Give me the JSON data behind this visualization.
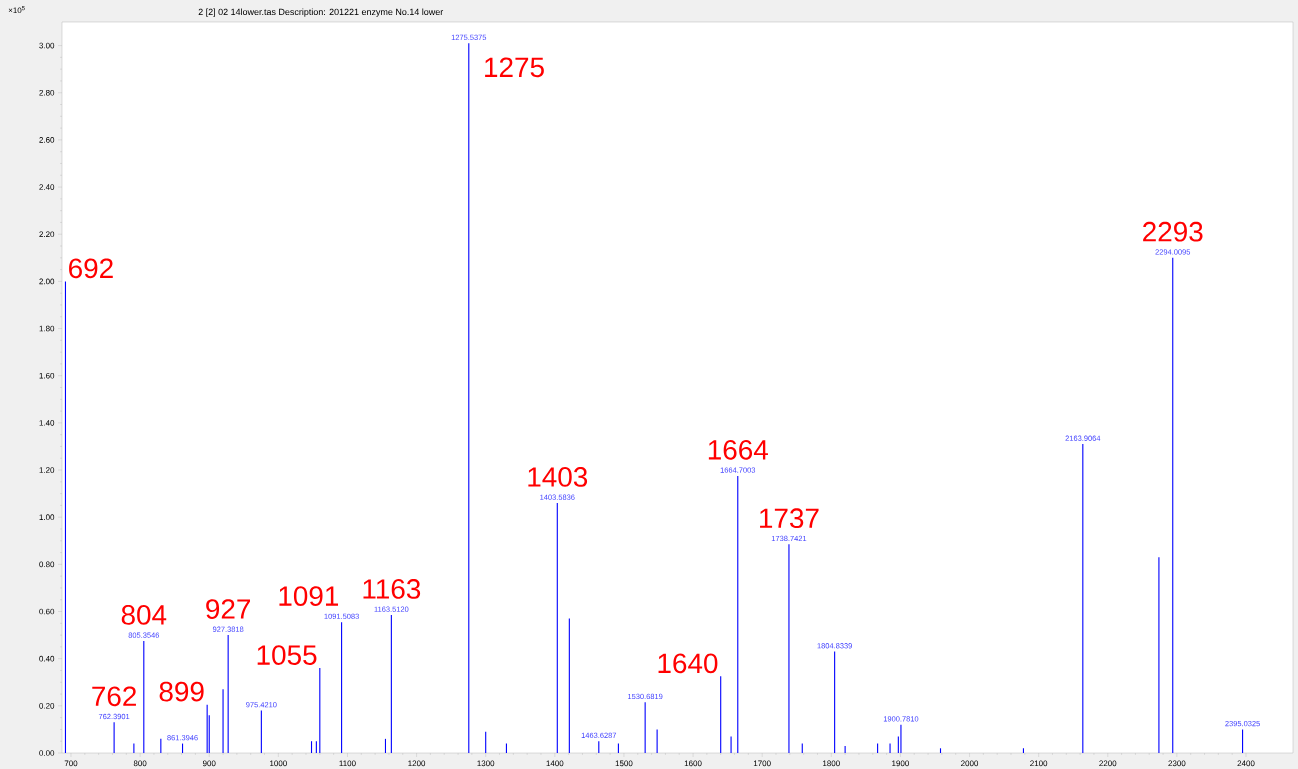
{
  "chart_data": {
    "type": "bar",
    "title": "2 [2] 02 14lower.tas    Description: 201221 enzyme No.14 lower",
    "ylabel": "×10$^{5}$",
    "color": "#0000ff",
    "x": [
      692,
      762.3901,
      791,
      805.3546,
      830,
      861.3946,
      897,
      900,
      920,
      927.3818,
      975.421,
      1048,
      1055,
      1060,
      1091.5083,
      1155,
      1163.512,
      1275.5375,
      1300,
      1330,
      1403.5836,
      1421,
      1463.6287,
      1492,
      1530.6819,
      1548,
      1640,
      1655,
      1664.7003,
      1738.7421,
      1758,
      1804.8339,
      1820,
      1867,
      1885,
      1897,
      1900.781,
      1958,
      2078,
      2163.9064,
      2274,
      2294.0095,
      2395.0325
    ],
    "values": [
      2.0,
      0.13,
      0.04,
      0.475,
      0.06,
      0.04,
      0.205,
      0.16,
      0.27,
      0.5,
      0.18,
      0.05,
      0.05,
      0.36,
      0.555,
      0.06,
      0.585,
      3.01,
      0.09,
      0.04,
      1.06,
      0.57,
      0.05,
      0.04,
      0.215,
      0.1,
      0.325,
      0.07,
      1.175,
      0.885,
      0.04,
      0.43,
      0.03,
      0.04,
      0.04,
      0.07,
      0.12,
      0.02,
      0.02,
      1.31,
      0.83,
      2.1,
      0.1
    ],
    "xlim": [
      687,
      2468
    ],
    "ylim": [
      0,
      3.1
    ],
    "xticks": [
      700,
      800,
      900,
      1000,
      1100,
      1200,
      1300,
      1400,
      1500,
      1600,
      1700,
      1800,
      1900,
      2000,
      2100,
      2200,
      2300,
      2400
    ],
    "yticks": [
      {
        "value": 0,
        "label": "0.00"
      },
      {
        "value": 0.2,
        "label": "0.20"
      },
      {
        "value": 0.4,
        "label": "0.40"
      },
      {
        "value": 0.6,
        "label": "0.60"
      },
      {
        "value": 0.8,
        "label": "0.80"
      },
      {
        "value": 1.0,
        "label": "1.00"
      },
      {
        "value": 1.2,
        "label": "1.20"
      },
      {
        "value": 1.4,
        "label": "1.40"
      },
      {
        "value": 1.6,
        "label": "1.60"
      },
      {
        "value": 1.8,
        "label": "1.80"
      },
      {
        "value": 2.0,
        "label": "2.00"
      },
      {
        "value": 2.2,
        "label": "2.20"
      },
      {
        "value": 2.4,
        "label": "2.40"
      },
      {
        "value": 2.6,
        "label": "2.60"
      },
      {
        "value": 2.8,
        "label": "2.80"
      },
      {
        "value": 3.0,
        "label": "3.00"
      }
    ],
    "annotations": [
      {
        "text": "762.3901",
        "x": 762.3901,
        "y": 0.13
      },
      {
        "text": "805.3546",
        "x": 805.3546,
        "y": 0.475
      },
      {
        "text": "861.3946",
        "x": 861.3946,
        "y": 0.04
      },
      {
        "text": "927.3818",
        "x": 927.3818,
        "y": 0.5
      },
      {
        "text": "975.4210",
        "x": 975.421,
        "y": 0.18
      },
      {
        "text": "1091.5083",
        "x": 1091.5083,
        "y": 0.555
      },
      {
        "text": "1163.5120",
        "x": 1163.512,
        "y": 0.585
      },
      {
        "text": "1275.5375",
        "x": 1275.5375,
        "y": 3.01
      },
      {
        "text": "1403.5836",
        "x": 1403.5836,
        "y": 1.06
      },
      {
        "text": "1463.6287",
        "x": 1463.6287,
        "y": 0.05
      },
      {
        "text": "1530.6819",
        "x": 1530.6819,
        "y": 0.215
      },
      {
        "text": "1664.7003",
        "x": 1664.7003,
        "y": 1.175
      },
      {
        "text": "1738.7421",
        "x": 1738.7421,
        "y": 0.885
      },
      {
        "text": "1804.8339",
        "x": 1804.8339,
        "y": 0.43
      },
      {
        "text": "1900.7810",
        "x": 1900.781,
        "y": 0.12
      },
      {
        "text": "2163.9064",
        "x": 2163.9064,
        "y": 1.31
      },
      {
        "text": "2294.0095",
        "x": 2294.0095,
        "y": 2.1
      },
      {
        "text": "2395.0325",
        "x": 2395.0325,
        "y": 0.1
      },
      {
        "text": "692",
        "x": 692,
        "y": 2.0
      },
      {
        "text": "762",
        "x": 762.3901,
        "y": 0.13
      },
      {
        "text": "804",
        "x": 805.3546,
        "y": 0.475
      },
      {
        "text": "899",
        "x": 897,
        "y": 0.205
      },
      {
        "text": "927",
        "x": 927.3818,
        "y": 0.5
      },
      {
        "text": "1055",
        "x": 1060,
        "y": 0.36
      },
      {
        "text": "1091",
        "x": 1091.5083,
        "y": 0.555
      },
      {
        "text": "1163",
        "x": 1163.512,
        "y": 0.585
      },
      {
        "text": "1275",
        "x": 1275.5375,
        "y": 3.01
      },
      {
        "text": "1403",
        "x": 1403.5836,
        "y": 1.06
      },
      {
        "text": "1640",
        "x": 1640,
        "y": 0.325
      },
      {
        "text": "1664",
        "x": 1664.7003,
        "y": 1.175
      },
      {
        "text": "1737",
        "x": 1738.7421,
        "y": 0.885
      },
      {
        "text": "2293",
        "x": 2294.0095,
        "y": 2.1
      }
    ]
  }
}
